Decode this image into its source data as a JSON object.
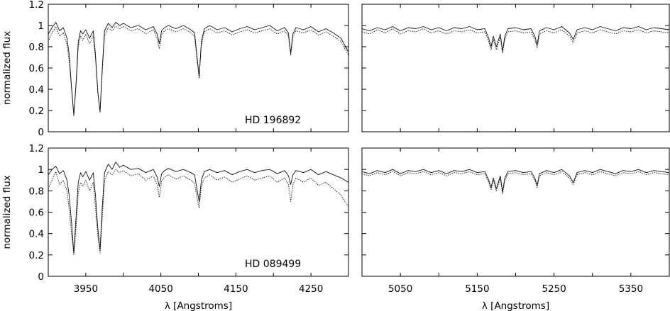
{
  "chart_data": [
    {
      "type": "line",
      "panel": "top-left",
      "annotation": "HD 196892",
      "ylabel": "normalized flux",
      "xlabel": "",
      "xlim": [
        3900,
        4300
      ],
      "ylim": [
        0,
        1.2
      ],
      "yticks": [
        "0",
        "0.2",
        "0.4",
        "0.6",
        "0.8",
        "1",
        "1.2"
      ],
      "xticks": [],
      "series": [
        {
          "style": "solid",
          "x": [
            3900,
            3905,
            3910,
            3915,
            3920,
            3925,
            3928,
            3931,
            3934,
            3937,
            3940,
            3943,
            3946,
            3950,
            3955,
            3960,
            3963,
            3966,
            3969,
            3972,
            3975,
            3980,
            3985,
            3990,
            3995,
            4000,
            4010,
            4020,
            4030,
            4040,
            4045,
            4048,
            4051,
            4055,
            4060,
            4070,
            4080,
            4090,
            4095,
            4098,
            4101,
            4104,
            4108,
            4115,
            4125,
            4135,
            4145,
            4155,
            4165,
            4175,
            4185,
            4195,
            4205,
            4215,
            4220,
            4223,
            4226,
            4230,
            4240,
            4250,
            4260,
            4270,
            4280,
            4290,
            4300
          ],
          "y": [
            0.92,
            0.98,
            1.03,
            0.95,
            0.98,
            0.88,
            0.72,
            0.42,
            0.16,
            0.45,
            0.85,
            0.95,
            0.92,
            0.96,
            0.88,
            0.95,
            0.72,
            0.38,
            0.19,
            0.6,
            0.95,
            1.02,
            0.98,
            1.03,
            1.0,
            1.02,
            0.98,
            1.0,
            0.96,
            0.99,
            0.92,
            0.83,
            0.95,
            0.98,
            1.0,
            0.97,
            1.0,
            0.96,
            0.93,
            0.72,
            0.52,
            0.85,
            0.97,
            1.0,
            0.96,
            0.98,
            0.94,
            0.97,
            0.99,
            0.96,
            0.98,
            1.0,
            0.95,
            0.98,
            0.93,
            0.74,
            0.92,
            0.98,
            0.96,
            0.99,
            0.94,
            0.97,
            0.93,
            0.88,
            0.75
          ]
        },
        {
          "style": "dotted",
          "x": [
            3900,
            3905,
            3910,
            3915,
            3920,
            3925,
            3928,
            3931,
            3934,
            3937,
            3940,
            3943,
            3946,
            3950,
            3955,
            3960,
            3963,
            3966,
            3969,
            3972,
            3975,
            3980,
            3985,
            3990,
            3995,
            4000,
            4010,
            4020,
            4030,
            4040,
            4045,
            4048,
            4051,
            4055,
            4060,
            4070,
            4080,
            4090,
            4095,
            4098,
            4101,
            4104,
            4108,
            4115,
            4125,
            4135,
            4145,
            4155,
            4165,
            4175,
            4185,
            4195,
            4205,
            4215,
            4220,
            4223,
            4226,
            4230,
            4240,
            4250,
            4260,
            4270,
            4280,
            4290,
            4300
          ],
          "y": [
            0.85,
            0.93,
            0.99,
            0.9,
            0.93,
            0.82,
            0.66,
            0.4,
            0.15,
            0.42,
            0.8,
            0.9,
            0.86,
            0.92,
            0.83,
            0.9,
            0.68,
            0.36,
            0.18,
            0.56,
            0.9,
            0.98,
            0.95,
            0.99,
            0.97,
            0.99,
            0.95,
            0.97,
            0.92,
            0.96,
            0.88,
            0.78,
            0.91,
            0.95,
            0.97,
            0.94,
            0.97,
            0.93,
            0.9,
            0.69,
            0.5,
            0.81,
            0.94,
            0.97,
            0.93,
            0.95,
            0.91,
            0.94,
            0.96,
            0.93,
            0.95,
            0.97,
            0.92,
            0.95,
            0.9,
            0.72,
            0.89,
            0.95,
            0.93,
            0.96,
            0.91,
            0.94,
            0.9,
            0.85,
            0.72
          ]
        }
      ]
    },
    {
      "type": "line",
      "panel": "top-right",
      "annotation": "",
      "ylabel": "",
      "xlabel": "",
      "xlim": [
        5000,
        5400
      ],
      "ylim": [
        0,
        1.2
      ],
      "yticks": [],
      "xticks": [],
      "series": [
        {
          "style": "solid",
          "x": [
            5000,
            5010,
            5020,
            5030,
            5040,
            5050,
            5060,
            5070,
            5080,
            5090,
            5100,
            5110,
            5120,
            5130,
            5140,
            5150,
            5160,
            5165,
            5168,
            5171,
            5175,
            5180,
            5183,
            5186,
            5190,
            5200,
            5210,
            5220,
            5225,
            5228,
            5231,
            5240,
            5250,
            5260,
            5270,
            5275,
            5280,
            5290,
            5300,
            5310,
            5320,
            5330,
            5340,
            5350,
            5360,
            5370,
            5380,
            5390,
            5400
          ],
          "y": [
            0.97,
            0.95,
            0.98,
            0.96,
            0.99,
            0.95,
            0.98,
            0.97,
            0.99,
            0.96,
            0.98,
            0.95,
            0.98,
            0.97,
            0.99,
            0.96,
            0.97,
            0.88,
            0.8,
            0.9,
            0.8,
            0.92,
            0.76,
            0.9,
            0.97,
            0.98,
            0.96,
            0.97,
            0.9,
            0.82,
            0.95,
            0.98,
            0.96,
            0.99,
            0.93,
            0.87,
            0.96,
            0.98,
            0.96,
            0.99,
            0.97,
            0.95,
            0.98,
            0.97,
            0.99,
            0.96,
            0.98,
            0.97,
            0.96
          ]
        },
        {
          "style": "dotted",
          "x": [
            5000,
            5010,
            5020,
            5030,
            5040,
            5050,
            5060,
            5070,
            5080,
            5090,
            5100,
            5110,
            5120,
            5130,
            5140,
            5150,
            5160,
            5165,
            5168,
            5171,
            5175,
            5180,
            5183,
            5186,
            5190,
            5200,
            5210,
            5220,
            5225,
            5228,
            5231,
            5240,
            5250,
            5260,
            5270,
            5275,
            5280,
            5290,
            5300,
            5310,
            5320,
            5330,
            5340,
            5350,
            5360,
            5370,
            5380,
            5390,
            5400
          ],
          "y": [
            0.94,
            0.92,
            0.96,
            0.93,
            0.97,
            0.92,
            0.95,
            0.94,
            0.97,
            0.93,
            0.95,
            0.92,
            0.95,
            0.94,
            0.96,
            0.93,
            0.94,
            0.85,
            0.77,
            0.87,
            0.77,
            0.89,
            0.74,
            0.87,
            0.94,
            0.95,
            0.93,
            0.94,
            0.87,
            0.79,
            0.92,
            0.95,
            0.93,
            0.96,
            0.9,
            0.84,
            0.93,
            0.95,
            0.93,
            0.96,
            0.94,
            0.92,
            0.95,
            0.94,
            0.96,
            0.93,
            0.95,
            0.94,
            0.93
          ]
        }
      ]
    },
    {
      "type": "line",
      "panel": "bottom-left",
      "annotation": "HD 089499",
      "ylabel": "normalized flux",
      "xlabel": "λ [Angstroms]",
      "xlim": [
        3900,
        4300
      ],
      "ylim": [
        0,
        1.2
      ],
      "yticks": [
        "0",
        "0.2",
        "0.4",
        "0.6",
        "0.8",
        "1",
        "1.2"
      ],
      "xticks": [
        "3950",
        "4050",
        "4150",
        "4250"
      ],
      "series": [
        {
          "style": "solid",
          "x": [
            3900,
            3905,
            3910,
            3915,
            3920,
            3925,
            3928,
            3931,
            3934,
            3937,
            3940,
            3943,
            3946,
            3950,
            3955,
            3960,
            3963,
            3966,
            3969,
            3972,
            3975,
            3980,
            3985,
            3990,
            3995,
            4000,
            4010,
            4020,
            4030,
            4040,
            4045,
            4048,
            4051,
            4055,
            4060,
            4070,
            4080,
            4090,
            4095,
            4098,
            4101,
            4104,
            4108,
            4115,
            4125,
            4135,
            4145,
            4155,
            4165,
            4175,
            4185,
            4195,
            4205,
            4215,
            4220,
            4223,
            4226,
            4230,
            4240,
            4250,
            4260,
            4270,
            4280,
            4290,
            4300
          ],
          "y": [
            0.95,
            1.0,
            1.03,
            0.96,
            0.99,
            0.9,
            0.75,
            0.5,
            0.22,
            0.55,
            0.88,
            0.97,
            0.93,
            0.98,
            0.9,
            0.97,
            0.75,
            0.45,
            0.25,
            0.65,
            0.97,
            1.05,
            1.0,
            1.07,
            1.02,
            1.04,
            1.0,
            1.01,
            0.97,
            1.0,
            0.93,
            0.84,
            0.96,
            0.99,
            1.01,
            0.98,
            1.0,
            0.97,
            0.95,
            0.82,
            0.7,
            0.9,
            0.98,
            1.0,
            0.97,
            0.99,
            0.95,
            0.98,
            1.0,
            0.97,
            0.99,
            1.0,
            0.96,
            0.99,
            0.94,
            0.86,
            0.95,
            0.99,
            0.97,
            1.0,
            0.95,
            0.98,
            0.95,
            0.92,
            0.88
          ]
        },
        {
          "style": "dotted",
          "x": [
            3900,
            3905,
            3910,
            3915,
            3920,
            3925,
            3928,
            3931,
            3934,
            3937,
            3940,
            3943,
            3946,
            3950,
            3955,
            3960,
            3963,
            3966,
            3969,
            3972,
            3975,
            3980,
            3985,
            3990,
            3995,
            4000,
            4010,
            4020,
            4030,
            4040,
            4045,
            4048,
            4051,
            4055,
            4060,
            4070,
            4080,
            4090,
            4095,
            4098,
            4101,
            4104,
            4108,
            4115,
            4125,
            4135,
            4145,
            4155,
            4165,
            4175,
            4185,
            4195,
            4205,
            4215,
            4220,
            4223,
            4226,
            4230,
            4240,
            4250,
            4260,
            4270,
            4280,
            4290,
            4300
          ],
          "y": [
            0.82,
            0.9,
            0.98,
            0.86,
            0.9,
            0.8,
            0.62,
            0.4,
            0.2,
            0.45,
            0.78,
            0.88,
            0.84,
            0.9,
            0.8,
            0.88,
            0.64,
            0.38,
            0.22,
            0.55,
            0.9,
            0.98,
            0.95,
            1.0,
            0.97,
            0.99,
            0.94,
            0.96,
            0.9,
            0.94,
            0.86,
            0.74,
            0.89,
            0.93,
            0.95,
            0.91,
            0.94,
            0.9,
            0.87,
            0.74,
            0.64,
            0.84,
            0.92,
            0.95,
            0.9,
            0.93,
            0.88,
            0.91,
            0.94,
            0.9,
            0.92,
            0.94,
            0.88,
            0.92,
            0.86,
            0.7,
            0.86,
            0.92,
            0.88,
            0.92,
            0.85,
            0.88,
            0.82,
            0.76,
            0.65
          ]
        }
      ]
    },
    {
      "type": "line",
      "panel": "bottom-right",
      "annotation": "",
      "ylabel": "",
      "xlabel": "λ [Angstroms]",
      "xlim": [
        5000,
        5400
      ],
      "ylim": [
        0,
        1.2
      ],
      "yticks": [],
      "xticks": [
        "5050",
        "5150",
        "5250",
        "5350"
      ],
      "series": [
        {
          "style": "solid",
          "x": [
            5000,
            5010,
            5020,
            5030,
            5040,
            5050,
            5060,
            5070,
            5080,
            5090,
            5100,
            5110,
            5120,
            5130,
            5140,
            5150,
            5160,
            5165,
            5168,
            5171,
            5175,
            5180,
            5183,
            5186,
            5190,
            5200,
            5210,
            5220,
            5225,
            5228,
            5231,
            5240,
            5250,
            5260,
            5270,
            5275,
            5280,
            5290,
            5300,
            5310,
            5320,
            5330,
            5340,
            5350,
            5360,
            5370,
            5380,
            5390,
            5400
          ],
          "y": [
            0.98,
            0.96,
            0.99,
            0.97,
            1.0,
            0.96,
            0.99,
            0.98,
            1.0,
            0.97,
            0.99,
            0.96,
            0.99,
            0.98,
            1.0,
            0.97,
            0.98,
            0.9,
            0.83,
            0.92,
            0.82,
            0.94,
            0.79,
            0.92,
            0.98,
            0.99,
            0.97,
            0.98,
            0.92,
            0.85,
            0.96,
            0.99,
            0.97,
            1.0,
            0.94,
            0.88,
            0.97,
            0.99,
            0.97,
            1.0,
            0.98,
            0.96,
            0.99,
            0.98,
            1.0,
            0.97,
            0.99,
            0.98,
            0.97
          ]
        },
        {
          "style": "dotted",
          "x": [
            5000,
            5010,
            5020,
            5030,
            5040,
            5050,
            5060,
            5070,
            5080,
            5090,
            5100,
            5110,
            5120,
            5130,
            5140,
            5150,
            5160,
            5165,
            5168,
            5171,
            5175,
            5180,
            5183,
            5186,
            5190,
            5200,
            5210,
            5220,
            5225,
            5228,
            5231,
            5240,
            5250,
            5260,
            5270,
            5275,
            5280,
            5290,
            5300,
            5310,
            5320,
            5330,
            5340,
            5350,
            5360,
            5370,
            5380,
            5390,
            5400
          ],
          "y": [
            0.96,
            0.94,
            0.97,
            0.95,
            0.98,
            0.94,
            0.97,
            0.96,
            0.98,
            0.95,
            0.97,
            0.94,
            0.97,
            0.96,
            0.98,
            0.95,
            0.96,
            0.88,
            0.81,
            0.9,
            0.8,
            0.92,
            0.77,
            0.9,
            0.96,
            0.97,
            0.95,
            0.96,
            0.9,
            0.83,
            0.94,
            0.97,
            0.95,
            0.98,
            0.92,
            0.86,
            0.95,
            0.97,
            0.95,
            0.98,
            0.96,
            0.94,
            0.97,
            0.96,
            0.98,
            0.95,
            0.97,
            0.96,
            0.95
          ]
        }
      ]
    }
  ]
}
